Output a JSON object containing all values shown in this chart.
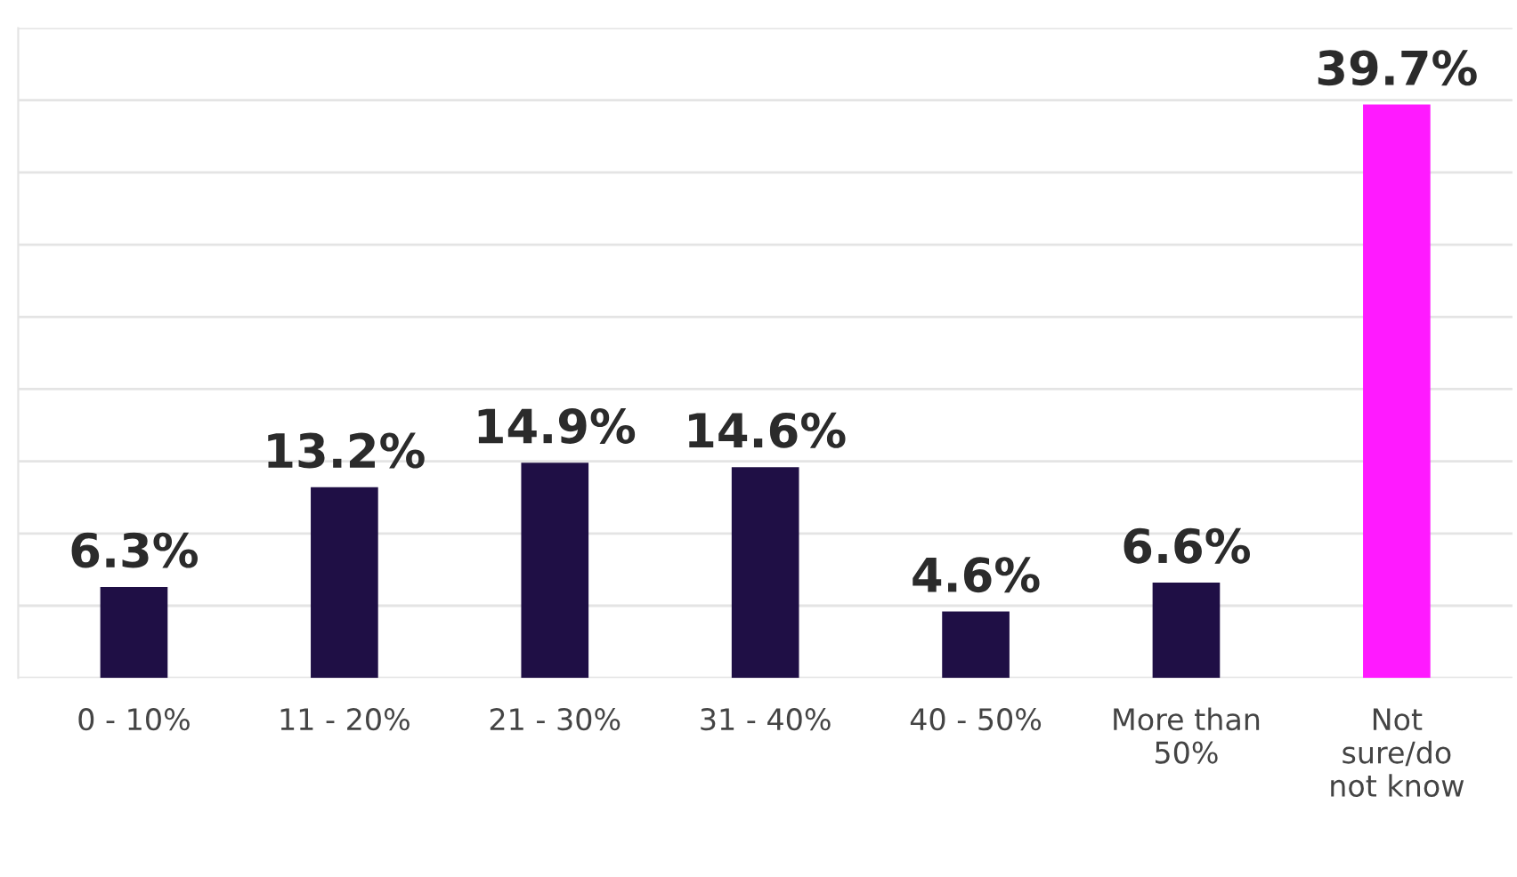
{
  "chart_data": {
    "type": "bar",
    "categories": [
      "0 - 10%",
      "11 - 20%",
      "21 - 30%",
      "31 - 40%",
      "40 - 50%",
      "More than\n50%",
      "Not\nsure/do\nnot know"
    ],
    "values": [
      6.3,
      13.2,
      14.9,
      14.6,
      4.6,
      6.6,
      39.7
    ],
    "colors": [
      "#1f0f45",
      "#1f0f45",
      "#1f0f45",
      "#1f0f45",
      "#1f0f45",
      "#1f0f45",
      "#ff1aff"
    ],
    "value_labels": [
      "6.3%",
      "13.2%",
      "14.9%",
      "14.6%",
      "4.6%",
      "6.6%",
      "39.7%"
    ],
    "ylim": [
      0,
      45
    ],
    "yticks": [
      {
        "value": 0,
        "label": null
      },
      {
        "value": 5,
        "label": null
      },
      {
        "value": 10,
        "label": null
      },
      {
        "value": 15,
        "label": null
      },
      {
        "value": 20,
        "label": null
      },
      {
        "value": 25,
        "label": null
      },
      {
        "value": 30,
        "label": null
      },
      {
        "value": 35,
        "label": null
      },
      {
        "value": 40,
        "label": null
      },
      {
        "value": 45,
        "label": null
      }
    ],
    "tick_labels": "x",
    "grid": "y",
    "legend": false
  }
}
